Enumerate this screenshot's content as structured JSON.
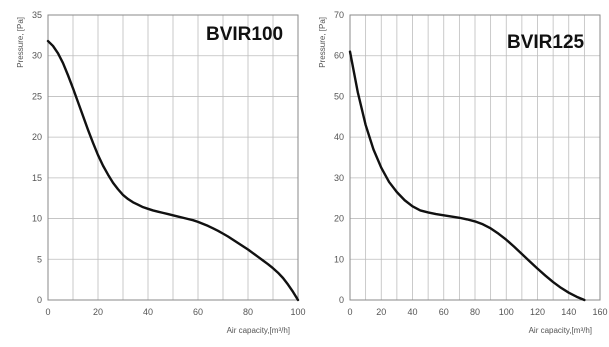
{
  "chart_data": [
    {
      "type": "line",
      "title": "BVIR100",
      "xlabel": "Air capacity,[m³/h]",
      "ylabel": "Pressure, [Pa]",
      "xlim": [
        0,
        100
      ],
      "ylim": [
        0,
        35
      ],
      "xticks": [
        0,
        20,
        40,
        60,
        80,
        100
      ],
      "yticks": [
        0,
        5,
        10,
        15,
        20,
        25,
        30,
        35
      ],
      "grid": true,
      "series": [
        {
          "color": "#111111",
          "x": [
            0,
            2,
            4,
            6,
            8,
            10,
            12,
            14,
            16,
            18,
            20,
            22,
            24,
            26,
            28,
            30,
            32,
            34,
            36,
            38,
            40,
            42,
            44,
            46,
            48,
            50,
            52,
            54,
            56,
            58,
            60,
            62,
            64,
            66,
            68,
            70,
            72,
            74,
            76,
            78,
            80,
            82,
            84,
            86,
            88,
            90,
            92,
            94,
            96,
            98,
            100
          ],
          "y": [
            31.8,
            31.2,
            30.3,
            29.1,
            27.6,
            26.0,
            24.3,
            22.6,
            20.9,
            19.3,
            17.8,
            16.5,
            15.4,
            14.4,
            13.6,
            12.9,
            12.4,
            12.0,
            11.7,
            11.4,
            11.2,
            11.0,
            10.85,
            10.7,
            10.55,
            10.4,
            10.25,
            10.1,
            9.95,
            9.8,
            9.6,
            9.35,
            9.1,
            8.8,
            8.5,
            8.15,
            7.8,
            7.4,
            7.0,
            6.6,
            6.2,
            5.75,
            5.3,
            4.85,
            4.4,
            3.9,
            3.35,
            2.7,
            1.9,
            1.0,
            0
          ]
        }
      ]
    },
    {
      "type": "line",
      "title": "BVIR125",
      "xlabel": "Air capacity,[m³/h]",
      "ylabel": "Pressure, [Pa]",
      "xlim": [
        0,
        160
      ],
      "ylim": [
        0,
        70
      ],
      "xticks": [
        0,
        20,
        40,
        60,
        80,
        100,
        120,
        140,
        160
      ],
      "yticks": [
        0,
        10,
        20,
        30,
        40,
        50,
        60,
        70
      ],
      "grid": true,
      "series": [
        {
          "color": "#111111",
          "x": [
            0,
            5,
            10,
            15,
            20,
            25,
            30,
            35,
            40,
            45,
            50,
            55,
            60,
            65,
            70,
            75,
            80,
            85,
            90,
            95,
            100,
            105,
            110,
            115,
            120,
            125,
            130,
            135,
            140,
            145,
            150
          ],
          "y": [
            61,
            51,
            43,
            37,
            32.5,
            29,
            26.5,
            24.5,
            23,
            22,
            21.5,
            21.1,
            20.8,
            20.5,
            20.2,
            19.8,
            19.3,
            18.6,
            17.6,
            16.3,
            14.8,
            13.1,
            11.3,
            9.5,
            7.7,
            6.0,
            4.4,
            3.0,
            1.8,
            0.8,
            0
          ]
        }
      ]
    }
  ]
}
